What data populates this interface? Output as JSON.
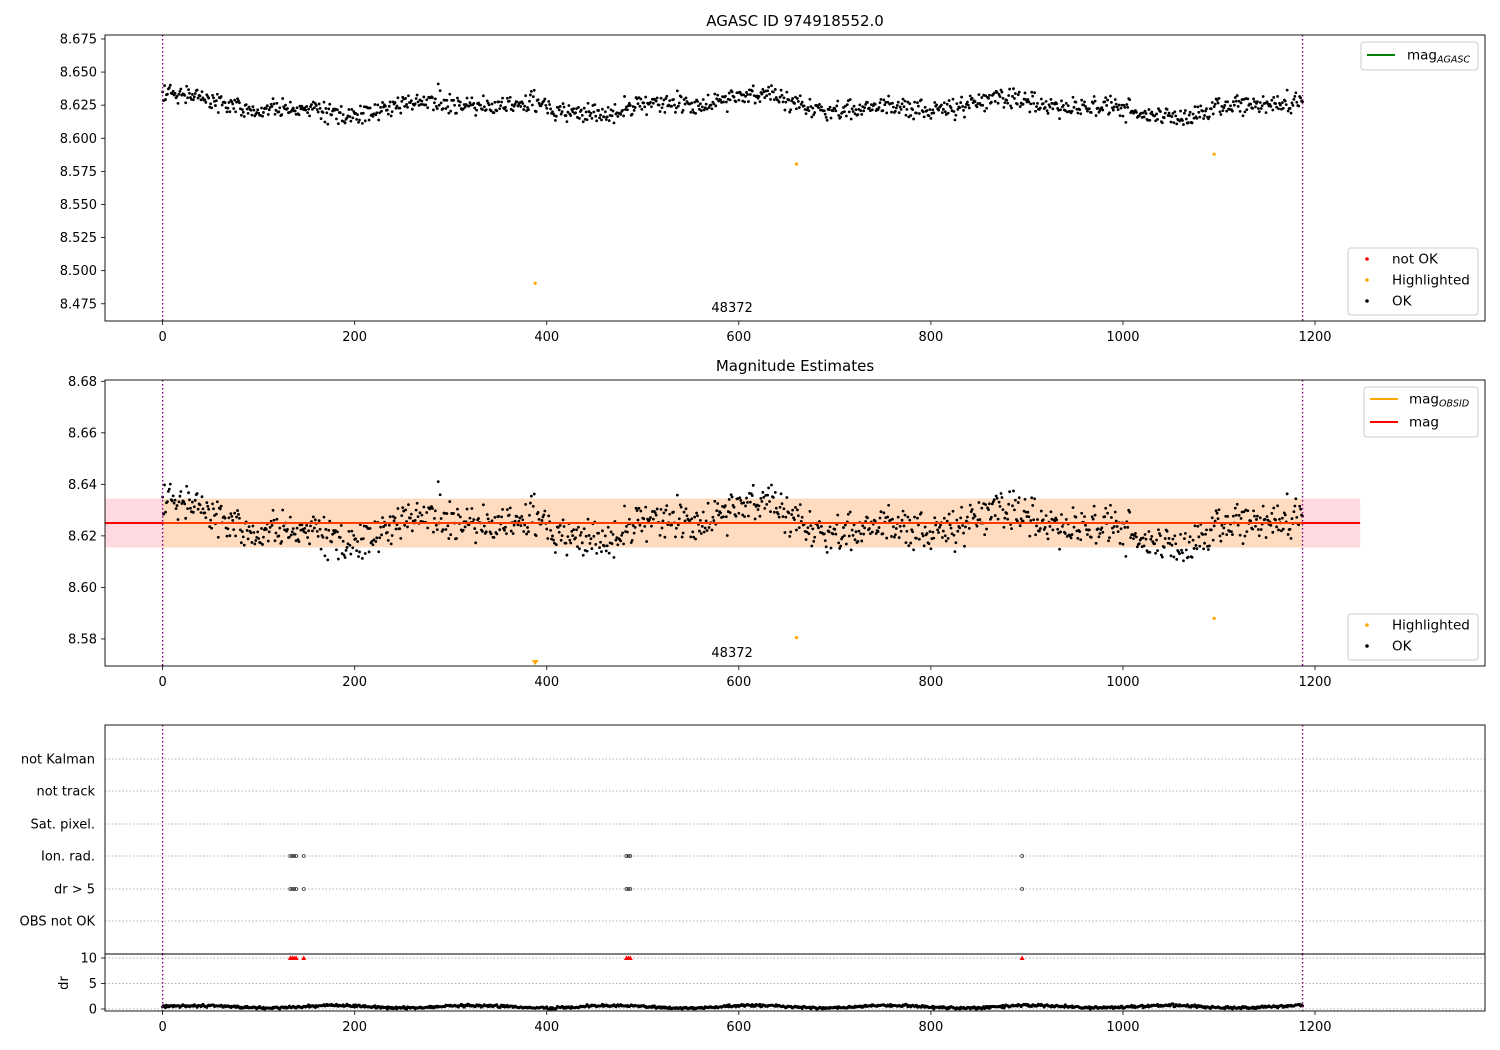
{
  "chart_data": [
    {
      "type": "scatter",
      "title": "AGASC ID 974918552.0",
      "xlim": [
        -60,
        1377
      ],
      "ylim": [
        8.462,
        8.678
      ],
      "x_ticks": [
        0,
        200,
        400,
        600,
        800,
        1000,
        1200
      ],
      "y_ticks": [
        "8.475",
        "8.500",
        "8.525",
        "8.550",
        "8.575",
        "8.600",
        "8.625",
        "8.650",
        "8.675"
      ],
      "y_tick_values": [
        8.475,
        8.5,
        8.525,
        8.55,
        8.575,
        8.6,
        8.625,
        8.65,
        8.675
      ],
      "obsid_boundaries": [
        0,
        1187
      ],
      "obsid_label": {
        "text": "48372",
        "x": 593
      },
      "series": [
        {
          "name": "OK",
          "color": "#000000",
          "points": "generated_ok_series"
        },
        {
          "name": "Highlighted",
          "color": "#ffa500",
          "points": [
            [
              388,
              8.4905
            ],
            [
              660,
              8.5805
            ],
            [
              1095,
              8.588
            ]
          ]
        },
        {
          "name": "not OK",
          "color": "#ff0000",
          "points": []
        }
      ],
      "legend_top": {
        "entries": [
          {
            "label": "mag",
            "sub": "AGASC",
            "color": "#008000"
          }
        ],
        "placement": "top-right"
      },
      "legend_bottom": {
        "entries": [
          {
            "label": "not OK",
            "color": "#ff0000"
          },
          {
            "label": "Highlighted",
            "color": "#ffa500"
          },
          {
            "label": "OK",
            "color": "#000000"
          }
        ],
        "placement": "bottom-right"
      },
      "grid": false
    },
    {
      "type": "scatter",
      "title": "Magnitude Estimates",
      "xlim": [
        -60,
        1377
      ],
      "ylim": [
        8.5695,
        8.6805
      ],
      "x_ticks": [
        0,
        200,
        400,
        600,
        800,
        1000,
        1200
      ],
      "y_ticks": [
        "8.58",
        "8.60",
        "8.62",
        "8.64",
        "8.66",
        "8.68"
      ],
      "y_tick_values": [
        8.58,
        8.6,
        8.62,
        8.64,
        8.66,
        8.68
      ],
      "obsid_boundaries": [
        0,
        1187
      ],
      "obsid_label": {
        "text": "48372",
        "x": 593
      },
      "mag": 8.625,
      "mag_band": [
        8.6155,
        8.6345
      ],
      "mag_band_x": [
        -60,
        1247
      ],
      "mag_obsid_band": {
        "x": [
          0,
          1187
        ],
        "y": [
          8.6155,
          8.6345
        ]
      },
      "series": [
        {
          "name": "OK",
          "color": "#000000",
          "points": "generated_ok_series"
        },
        {
          "name": "Highlighted",
          "color": "#ffa500",
          "points": [
            [
              660,
              8.5805
            ],
            [
              1095,
              8.588
            ]
          ]
        }
      ],
      "off_scale_marker": {
        "x": 388,
        "color": "#ffa500"
      },
      "legend_top": {
        "entries": [
          {
            "label": "mag",
            "sub": "OBSID",
            "color": "#ffa500"
          },
          {
            "label": "mag",
            "sub": "",
            "color": "#ff0000"
          }
        ],
        "placement": "top-right"
      },
      "legend_bottom": {
        "entries": [
          {
            "label": "Highlighted",
            "color": "#ffa500"
          },
          {
            "label": "OK",
            "color": "#000000"
          }
        ],
        "placement": "bottom-right"
      },
      "grid": false
    },
    {
      "type": "scatter",
      "title": "",
      "xlim": [
        -60,
        1377
      ],
      "x_ticks": [
        0,
        200,
        400,
        600,
        800,
        1000,
        1200
      ],
      "flag_rows": [
        "not Kalman",
        "not track",
        "Sat. pixel.",
        "Ion. rad.",
        "dr > 5",
        "OBS not OK"
      ],
      "flag_points": {
        "Ion. rad.": [
          133,
          135,
          137,
          139,
          147,
          483,
          485,
          487,
          895
        ],
        "dr > 5": [
          133,
          135,
          137,
          139,
          147,
          483,
          485,
          487,
          895
        ]
      },
      "dr_ylabel": "dr",
      "dr_ylim": [
        -0.5,
        10.5
      ],
      "dr_ticks": [
        0,
        5,
        10
      ],
      "dr_clipped": {
        "x": [
          133,
          135,
          137,
          139,
          147,
          483,
          485,
          487,
          895
        ],
        "y": 10,
        "color": "#ff0000"
      },
      "obsid_boundaries": [
        0,
        1187
      ],
      "grid": "horizontal-dotted"
    }
  ],
  "colors": {
    "obsid_line": "#800080",
    "band_red": "#ffc0cb",
    "band_orange": "#ffdab9",
    "flag_grid": "#b0b0b0"
  }
}
